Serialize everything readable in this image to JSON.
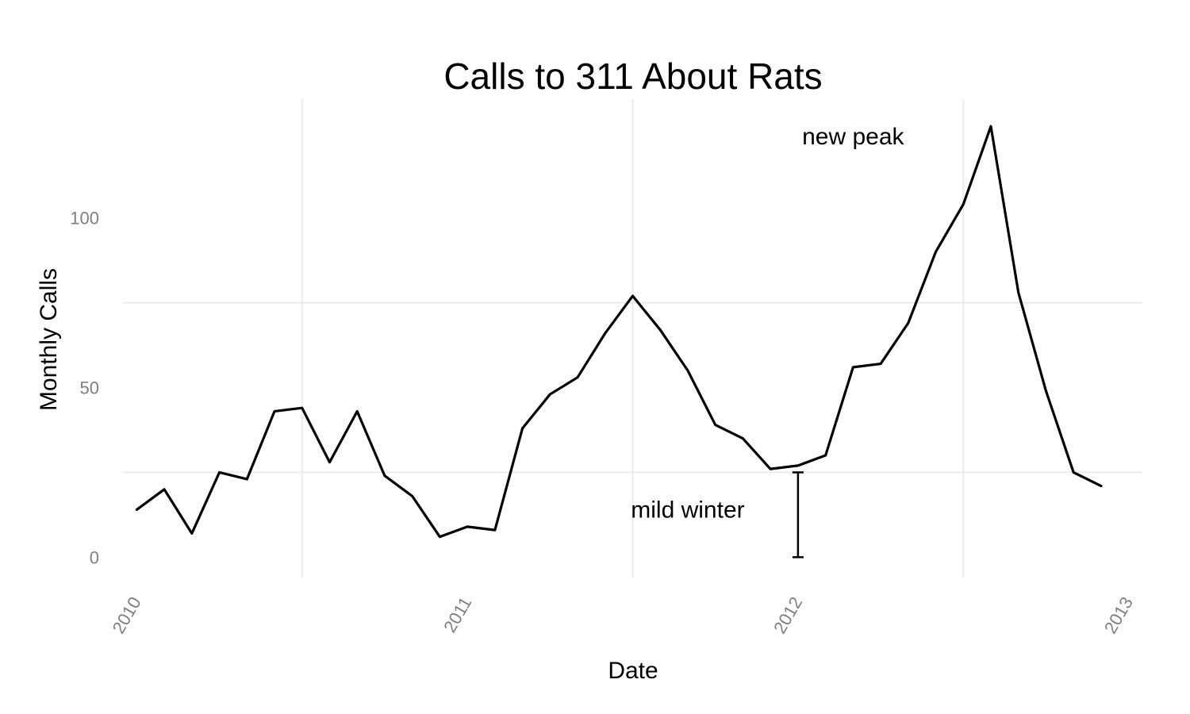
{
  "chart_data": {
    "type": "line",
    "title": "Calls to 311 About Rats",
    "xlabel": "Date",
    "ylabel": "Monthly Calls",
    "x_ticks": [
      "2010",
      "2011",
      "2012",
      "2013"
    ],
    "y_ticks": [
      0,
      50,
      100
    ],
    "xlim": [
      "2009-12",
      "2013-01"
    ],
    "ylim": [
      -6,
      135
    ],
    "grid": true,
    "colors": {
      "line": "#000000",
      "grid": "#ebebeb",
      "tick_text": "#7f7f7f"
    },
    "series": [
      {
        "x": [
          "2010-01",
          "2010-02",
          "2010-03",
          "2010-04",
          "2010-05",
          "2010-06",
          "2010-07",
          "2010-08",
          "2010-09",
          "2010-10",
          "2010-11",
          "2010-12",
          "2011-01",
          "2011-02",
          "2011-03",
          "2011-04",
          "2011-05",
          "2011-06",
          "2011-07",
          "2011-08",
          "2011-09",
          "2011-10",
          "2011-11",
          "2011-12",
          "2012-01",
          "2012-02",
          "2012-03",
          "2012-04",
          "2012-05",
          "2012-06",
          "2012-07",
          "2012-08",
          "2012-09",
          "2012-10",
          "2012-11",
          "2012-12"
        ],
        "values": [
          14,
          20,
          7,
          25,
          23,
          43,
          44,
          28,
          43,
          24,
          18,
          6,
          9,
          8,
          38,
          48,
          53,
          66,
          77,
          67,
          55,
          39,
          35,
          26,
          27,
          30,
          56,
          57,
          69,
          90,
          104,
          127,
          78,
          49,
          25,
          21
        ]
      }
    ],
    "annotations": [
      {
        "text": "new peak",
        "x": "2012-03",
        "y": 124
      },
      {
        "text": "mild winter",
        "x": "2011-09",
        "y": 14
      }
    ],
    "errorbar": {
      "x": "2012-01",
      "ymin": 0,
      "ymax": 25
    }
  }
}
